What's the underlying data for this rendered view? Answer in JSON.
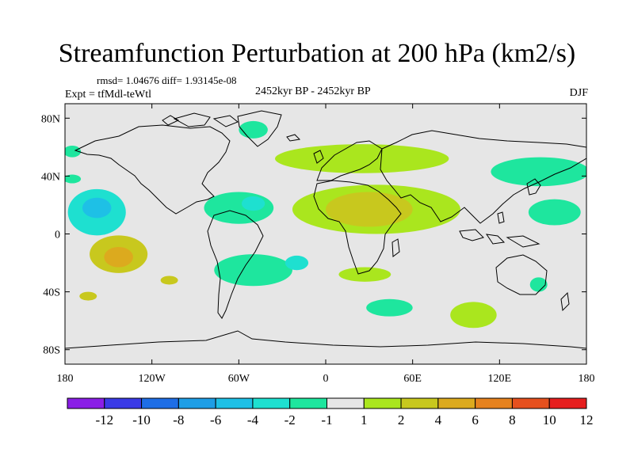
{
  "chart_data": {
    "type": "heatmap",
    "title": "Streamfunction Perturbation at 200 hPa (km2/s)",
    "stats_line": "rmsd= 1.04676 diff= 1.93145e-08",
    "experiment_line": "Expt = tfMdl-teWtl",
    "period": "2452kyr BP - 2452kyr BP",
    "season": "DJF",
    "x_range": [
      -180,
      180
    ],
    "y_range": [
      -90,
      90
    ],
    "x_ticks": [
      {
        "value": -180,
        "label": "180"
      },
      {
        "value": -120,
        "label": "120W"
      },
      {
        "value": -60,
        "label": "60W"
      },
      {
        "value": 0,
        "label": "0"
      },
      {
        "value": 60,
        "label": "60E"
      },
      {
        "value": 120,
        "label": "120E"
      },
      {
        "value": 180,
        "label": "180"
      }
    ],
    "y_ticks": [
      {
        "value": 80,
        "label": "80N"
      },
      {
        "value": 40,
        "label": "40N"
      },
      {
        "value": 0,
        "label": "0"
      },
      {
        "value": -40,
        "label": "40S"
      },
      {
        "value": -80,
        "label": "80S"
      }
    ],
    "colorbar": {
      "colors": [
        "#8a1ee6",
        "#3a3ae6",
        "#1e6ee6",
        "#1e9ee6",
        "#1ec0e6",
        "#1ee0d0",
        "#1ee69e",
        "#e6e6e6",
        "#aae61e",
        "#c8c81e",
        "#dcaa1e",
        "#e6821e",
        "#e6501e",
        "#e61e1e"
      ],
      "labels": [
        "-12",
        "-10",
        "-8",
        "-6",
        "-4",
        "-2",
        "-1",
        "1",
        "2",
        "4",
        "6",
        "8",
        "10",
        "12"
      ]
    },
    "field_blobs": [
      {
        "lon": -158,
        "lat": 15,
        "rlon": 20,
        "rlat": 16,
        "level": -2
      },
      {
        "lon": -158,
        "lat": 18,
        "rlon": 10,
        "rlat": 7,
        "level": -4
      },
      {
        "lon": -143,
        "lat": -14,
        "rlon": 20,
        "rlat": 13,
        "level": 2
      },
      {
        "lon": -143,
        "lat": -16,
        "rlon": 10,
        "rlat": 7,
        "level": 4
      },
      {
        "lon": -108,
        "lat": -32,
        "rlon": 6,
        "rlat": 3,
        "level": 2
      },
      {
        "lon": -164,
        "lat": -43,
        "rlon": 6,
        "rlat": 3,
        "level": 2
      },
      {
        "lon": -60,
        "lat": 18,
        "rlon": 24,
        "rlat": 11,
        "level": -1
      },
      {
        "lon": -50,
        "lat": 21,
        "rlon": 8,
        "rlat": 5,
        "level": -2
      },
      {
        "lon": -50,
        "lat": -25,
        "rlon": 27,
        "rlat": 11,
        "level": -1
      },
      {
        "lon": -20,
        "lat": -20,
        "rlon": 8,
        "rlat": 5,
        "level": -2
      },
      {
        "lon": -50,
        "lat": 72,
        "rlon": 10,
        "rlat": 6,
        "level": -1
      },
      {
        "lon": 25,
        "lat": 52,
        "rlon": 60,
        "rlat": 10,
        "level": 1
      },
      {
        "lon": 35,
        "lat": 17,
        "rlon": 58,
        "rlat": 17,
        "level": 1
      },
      {
        "lon": 30,
        "lat": 17,
        "rlon": 30,
        "rlat": 12,
        "level": 2
      },
      {
        "lon": 27,
        "lat": -28,
        "rlon": 18,
        "rlat": 5,
        "level": 1
      },
      {
        "lon": 44,
        "lat": -51,
        "rlon": 16,
        "rlat": 6,
        "level": -1
      },
      {
        "lon": 102,
        "lat": -56,
        "rlon": 16,
        "rlat": 9,
        "level": 1
      },
      {
        "lon": 147,
        "lat": -35,
        "rlon": 6,
        "rlat": 5,
        "level": -1
      },
      {
        "lon": 148,
        "lat": 43,
        "rlon": 34,
        "rlat": 10,
        "level": -1
      },
      {
        "lon": 158,
        "lat": 15,
        "rlon": 18,
        "rlat": 9,
        "level": -1
      },
      {
        "lon": -175,
        "lat": 57,
        "rlon": 6,
        "rlat": 4,
        "level": -1
      },
      {
        "lon": -175,
        "lat": 38,
        "rlon": 6,
        "rlat": 3,
        "level": -1
      }
    ]
  }
}
